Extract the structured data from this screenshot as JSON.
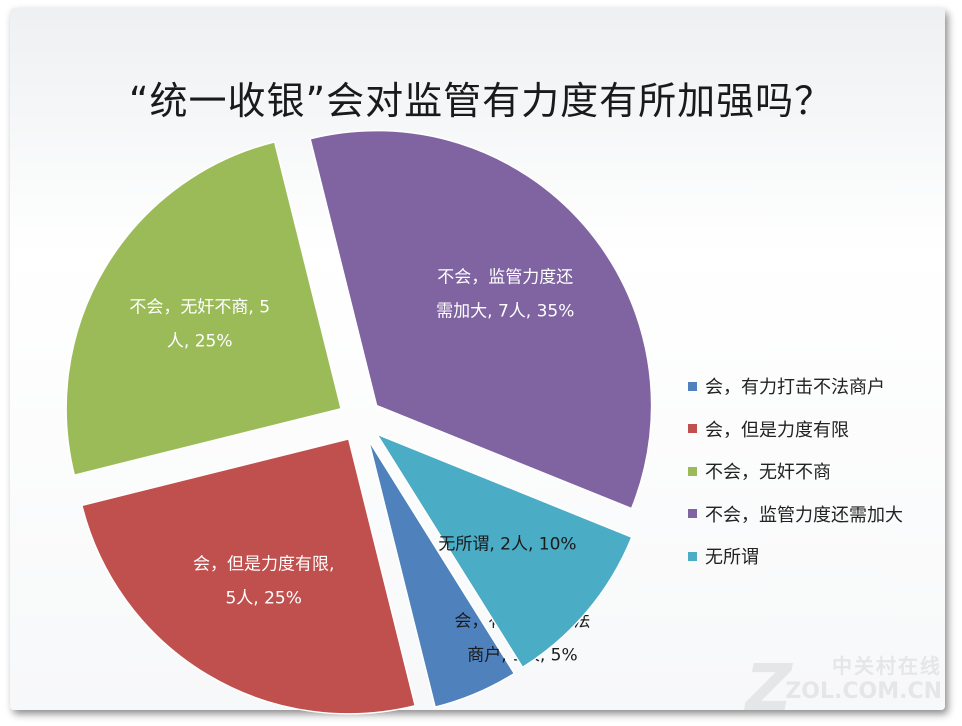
{
  "chart_data": {
    "type": "pie",
    "title": "“统一收银”会对监管有力度有所加强吗？",
    "slices": [
      {
        "name": "会，有力打击不法商户",
        "value": 1,
        "percent": 5,
        "color": "#4f81bd",
        "label_lines": [
          "会，有力打击不法",
          "商户, 1人, 5%"
        ]
      },
      {
        "name": "会，但是力度有限",
        "value": 5,
        "percent": 25,
        "color": "#c0504d",
        "label_lines": [
          "会，但是力度有限,",
          "5人, 25%"
        ]
      },
      {
        "name": "不会，无奸不商",
        "value": 5,
        "percent": 25,
        "color": "#9bbb59",
        "label_lines": [
          "不会，无奸不商, 5",
          "人, 25%"
        ]
      },
      {
        "name": "不会，监管力度还需加大",
        "value": 7,
        "percent": 35,
        "color": "#8064a2",
        "label_lines": [
          "不会，监管力度还",
          "需加大, 7人, 35%"
        ]
      },
      {
        "name": "无所谓",
        "value": 2,
        "percent": 10,
        "color": "#4bacc6",
        "label_lines": [
          "无所谓, 2人, 10%"
        ]
      }
    ],
    "legend_position": "right"
  },
  "watermark": {
    "top": "中关村在线",
    "bottom": "ZOL.COM.CN",
    "mark": "Z"
  }
}
